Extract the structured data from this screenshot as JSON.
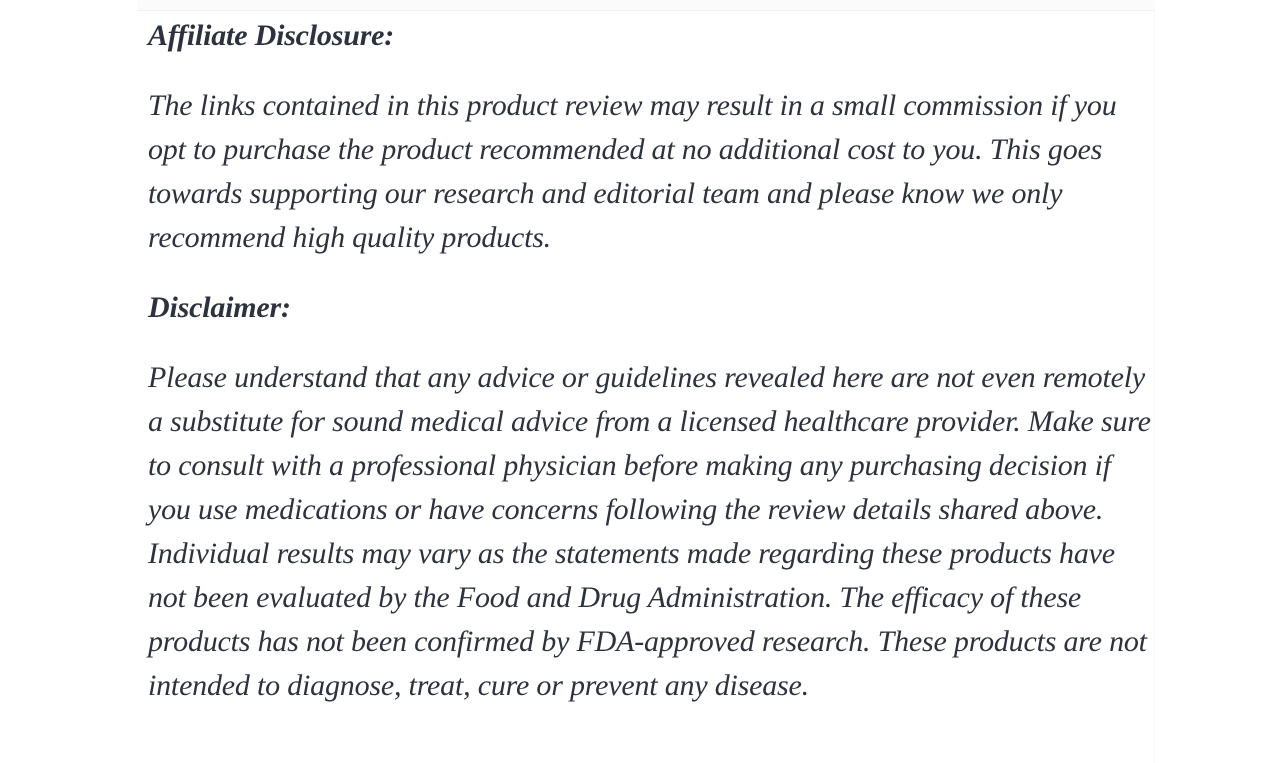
{
  "page": {
    "background_color": "#ffffff",
    "text_color": "#2d323e",
    "hairline_color": "#f0f0f0"
  },
  "article": {
    "sections": [
      {
        "heading": "Affiliate Disclosure:",
        "body": "The links contained in this product review may result in a small commission if you opt to purchase the product recommended at no additional cost to you. This goes towards supporting our research and editorial team and please know we only recommend high quality products."
      },
      {
        "heading": "Disclaimer:",
        "body": "Please understand that any advice or guidelines revealed here are not even remotely a substitute for sound medical advice from a licensed healthcare provider. Make sure to consult with a professional physician before making any purchasing decision if you use medications or have concerns following the review details shared above. Individual results may vary as the statements made regarding these products have not been evaluated by the Food and Drug Administration. The efficacy of these products has not been confirmed by FDA-approved research. These products are not intended to diagnose, treat, cure or prevent any disease."
      }
    ]
  }
}
